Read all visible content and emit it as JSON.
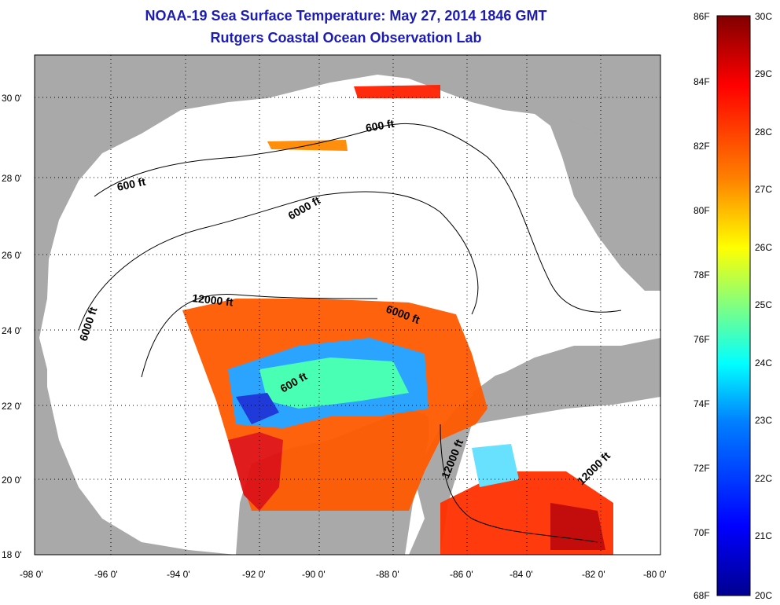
{
  "title": {
    "line1": "NOAA-19 Sea Surface Temperature:  May 27, 2014 1846 GMT",
    "line2": "Rutgers Coastal Ocean Observation Lab"
  },
  "colors": {
    "title": "#1c1cb4",
    "land": "#a9a9a9",
    "ocean_no_data": "#ffffff"
  },
  "map": {
    "lon_ticks": [
      "-98 0'",
      "-96 0'",
      "-94 0'",
      "-92 0'",
      "-90 0'",
      "-88 0'",
      "-86 0'",
      "-84 0'",
      "-82 0'",
      "-80 0'"
    ],
    "lat_ticks": [
      "18 0'",
      "20 0'",
      "22 0'",
      "24 0'",
      "26 0'",
      "28 0'",
      "30 0'"
    ],
    "lon_range": [
      -98,
      -80
    ],
    "lat_range": [
      18,
      31
    ],
    "contour_labels": [
      "600 ft",
      "600 ft",
      "6000 ft",
      "6000 ft",
      "12000 ft",
      "6000 ft",
      "600 ft",
      "12000 ft",
      "12000 ft"
    ]
  },
  "colorbar": {
    "fahrenheit": [
      "86F",
      "84F",
      "82F",
      "80F",
      "78F",
      "76F",
      "74F",
      "72F",
      "70F",
      "68F"
    ],
    "celsius": [
      "30C",
      "29C",
      "28C",
      "27C",
      "26C",
      "25C",
      "24C",
      "23C",
      "22C",
      "21C",
      "20C"
    ],
    "range_c": [
      20,
      30
    ],
    "gradient": [
      "#00008f",
      "#0000ff",
      "#0080ff",
      "#00ffff",
      "#80ff80",
      "#ffff00",
      "#ff8000",
      "#ff0000",
      "#800000"
    ]
  }
}
